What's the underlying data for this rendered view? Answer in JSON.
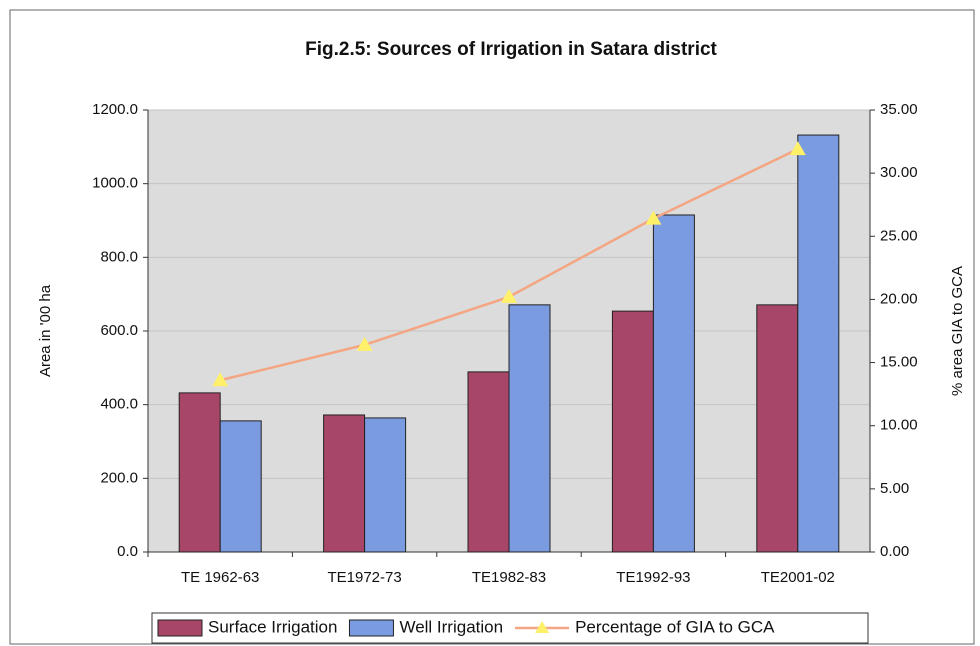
{
  "chart_data": {
    "type": "bar",
    "title": "Fig.2.5: Sources of Irrigation in Satara district",
    "y_label": "Area in '00 ha",
    "y2_label": "% area GIA to GCA",
    "categories": [
      "TE 1962-63",
      "TE1972-73",
      "TE1982-83",
      "TE1992-93",
      "TE2001-02"
    ],
    "series": [
      {
        "name": "Surface Irrigation",
        "type": "bar",
        "color": "#a8466a",
        "values": [
          432,
          372,
          489,
          654,
          671
        ]
      },
      {
        "name": "Well Irrigation",
        "type": "bar",
        "color": "#7b9be0",
        "values": [
          356,
          364,
          671,
          915,
          1132
        ]
      },
      {
        "name": "Percentage of GIA to GCA",
        "type": "line",
        "axis": "y2",
        "color": "#f4a582",
        "marker_color": "#fff06a",
        "values": [
          13.6,
          16.4,
          20.2,
          26.4,
          31.9
        ]
      }
    ],
    "ylim": [
      0,
      1200
    ],
    "yticks": [
      {
        "value": 0,
        "label": "0.0"
      },
      {
        "value": 200,
        "label": "200.0"
      },
      {
        "value": 400,
        "label": "400.0"
      },
      {
        "value": 600,
        "label": "600.0"
      },
      {
        "value": 800,
        "label": "800.0"
      },
      {
        "value": 1000,
        "label": "1000.0"
      },
      {
        "value": 1200,
        "label": "1200.0"
      }
    ],
    "y2lim": [
      0,
      35
    ],
    "y2ticks": [
      {
        "value": 0,
        "label": "0.00"
      },
      {
        "value": 5,
        "label": "5.00"
      },
      {
        "value": 10,
        "label": "10.00"
      },
      {
        "value": 15,
        "label": "15.00"
      },
      {
        "value": 20,
        "label": "20.00"
      },
      {
        "value": 25,
        "label": "25.00"
      },
      {
        "value": 30,
        "label": "30.00"
      },
      {
        "value": 35,
        "label": "35.00"
      }
    ],
    "grid": true,
    "legend": "bottom"
  }
}
